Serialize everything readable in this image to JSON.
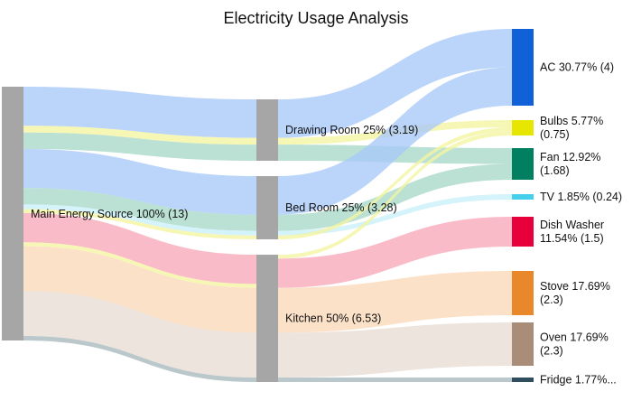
{
  "chart_data": {
    "type": "sankey",
    "title": "Electricity Usage Analysis",
    "nodes": [
      {
        "id": "main",
        "label": "Main Energy Source 100% (13)",
        "value": 13,
        "color": "#a6a6a6"
      },
      {
        "id": "drawing",
        "label": "Drawing Room 25% (3.19)",
        "value": 3.19,
        "color": "#a6a6a6"
      },
      {
        "id": "bed",
        "label": "Bed Room 25% (3.28)",
        "value": 3.28,
        "color": "#a6a6a6"
      },
      {
        "id": "kitchen",
        "label": "Kitchen 50% (6.53)",
        "value": 6.53,
        "color": "#a6a6a6"
      },
      {
        "id": "ac",
        "label": [
          "AC 30.77% (4)"
        ],
        "value": 4,
        "color": "#1060d8"
      },
      {
        "id": "bulbs",
        "label": [
          "Bulbs 5.77%",
          "(0.75)"
        ],
        "value": 0.75,
        "color": "#e6e600"
      },
      {
        "id": "fan",
        "label": [
          "Fan 12.92%",
          "(1.68)"
        ],
        "value": 1.68,
        "color": "#008060"
      },
      {
        "id": "tv",
        "label": [
          "TV 1.85% (0.24)"
        ],
        "value": 0.24,
        "color": "#44d0ec"
      },
      {
        "id": "dish",
        "label": [
          "Dish Washer",
          "11.54% (1.5)"
        ],
        "value": 1.5,
        "color": "#e8003c"
      },
      {
        "id": "stove",
        "label": [
          "Stove 17.69%",
          "(2.3)"
        ],
        "value": 2.3,
        "color": "#e8882a"
      },
      {
        "id": "oven",
        "label": [
          "Oven 17.69%",
          "(2.3)"
        ],
        "value": 2.3,
        "color": "#a98d78"
      },
      {
        "id": "fridge",
        "label": [
          "Fridge 1.77%..."
        ],
        "value": 0.23,
        "color": "#2f4f5f"
      }
    ],
    "links": [
      {
        "source": "main",
        "target": "drawing",
        "via": "ac",
        "value": 2
      },
      {
        "source": "main",
        "target": "drawing",
        "via": "bulbs",
        "value": 0.35
      },
      {
        "source": "main",
        "target": "drawing",
        "via": "fan",
        "value": 0.84
      },
      {
        "source": "main",
        "target": "bed",
        "via": "ac",
        "value": 2
      },
      {
        "source": "main",
        "target": "bed",
        "via": "fan",
        "value": 0.84
      },
      {
        "source": "main",
        "target": "bed",
        "via": "tv",
        "value": 0.24
      },
      {
        "source": "main",
        "target": "bed",
        "via": "bulbs",
        "value": 0.2
      },
      {
        "source": "main",
        "target": "kitchen",
        "via": "dish",
        "value": 1.5
      },
      {
        "source": "main",
        "target": "kitchen",
        "via": "bulbs",
        "value": 0.2
      },
      {
        "source": "main",
        "target": "kitchen",
        "via": "stove",
        "value": 2.3
      },
      {
        "source": "main",
        "target": "kitchen",
        "via": "oven",
        "value": 2.3
      },
      {
        "source": "main",
        "target": "kitchen",
        "via": "fridge",
        "value": 0.23
      },
      {
        "source": "drawing",
        "target": "ac",
        "value": 2
      },
      {
        "source": "drawing",
        "target": "bulbs",
        "value": 0.35
      },
      {
        "source": "drawing",
        "target": "fan",
        "value": 0.84
      },
      {
        "source": "bed",
        "target": "ac",
        "value": 2
      },
      {
        "source": "bed",
        "target": "fan",
        "value": 0.84
      },
      {
        "source": "bed",
        "target": "tv",
        "value": 0.24
      },
      {
        "source": "bed",
        "target": "bulbs",
        "value": 0.2
      },
      {
        "source": "kitchen",
        "target": "bulbs",
        "value": 0.2
      },
      {
        "source": "kitchen",
        "target": "dish",
        "value": 1.5
      },
      {
        "source": "kitchen",
        "target": "stove",
        "value": 2.3
      },
      {
        "source": "kitchen",
        "target": "oven",
        "value": 2.3
      },
      {
        "source": "kitchen",
        "target": "fridge",
        "value": 0.23
      }
    ],
    "link_colors": {
      "ac": "#a8c8f8",
      "bulbs": "#f4f4a0",
      "fan": "#a6d8c8",
      "tv": "#c8f0f8",
      "dish": "#f8a8b8",
      "stove": "#fad8b8",
      "oven": "#e8dcd4",
      "fridge": "#a8b8bc"
    }
  }
}
